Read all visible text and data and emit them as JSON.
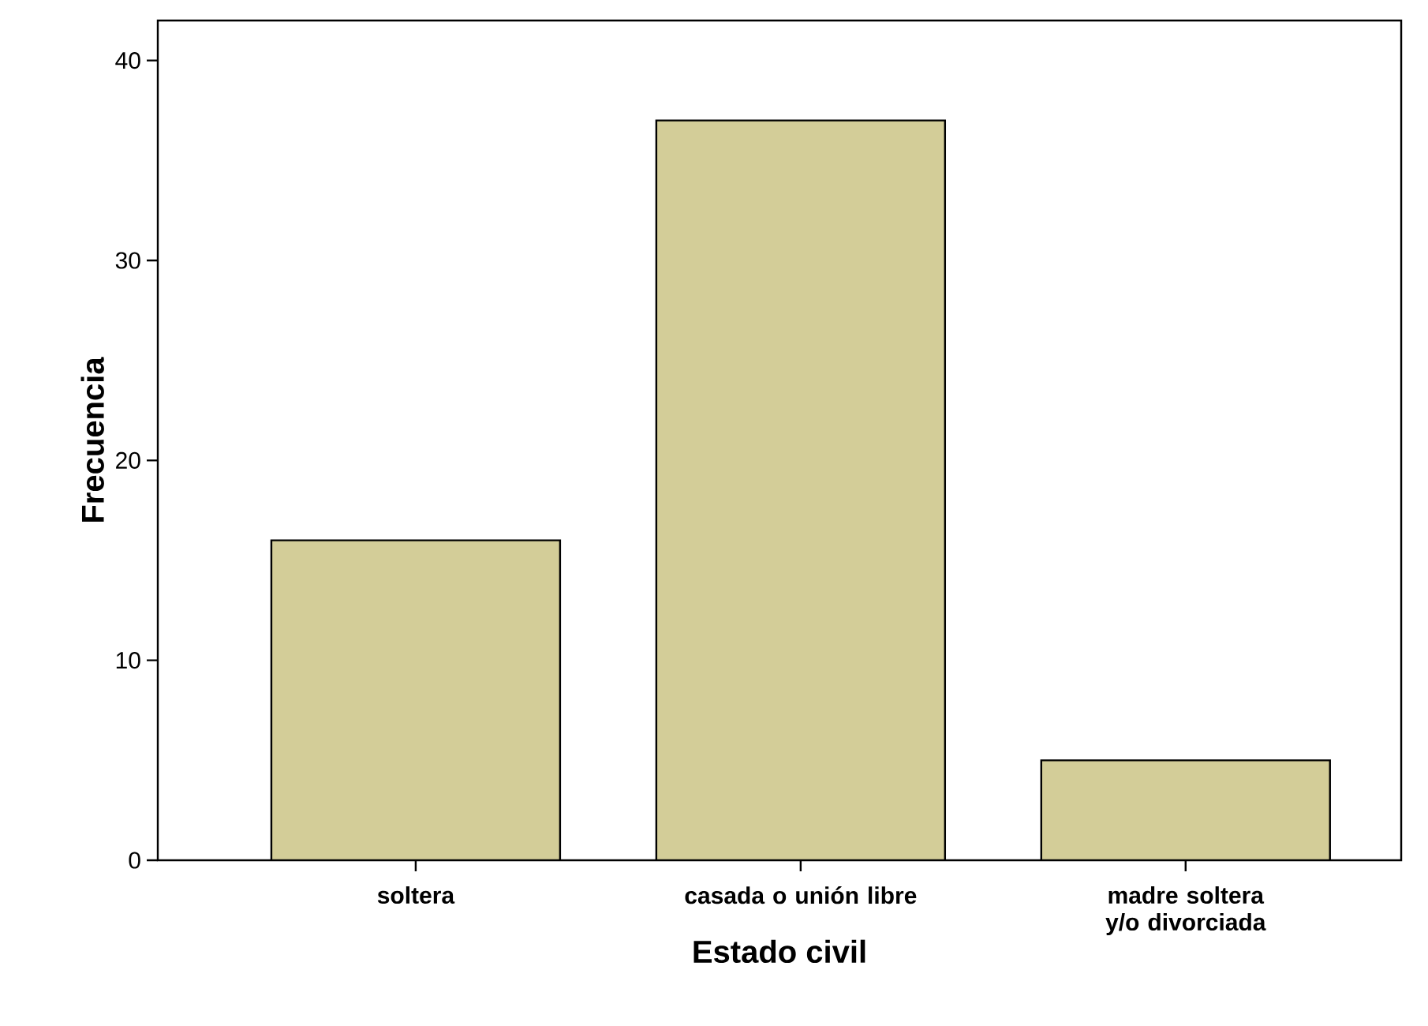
{
  "chart_data": {
    "type": "bar",
    "xlabel": "Estado civil",
    "ylabel": "Frecuencia",
    "categories": [
      "soltera",
      "casada o unión libre",
      "madre soltera y/o divorciada"
    ],
    "values": [
      16,
      37,
      5
    ],
    "color": "#d3cd98",
    "ylim": [
      0,
      42
    ],
    "yticks": [
      0,
      10,
      20,
      30,
      40
    ]
  }
}
